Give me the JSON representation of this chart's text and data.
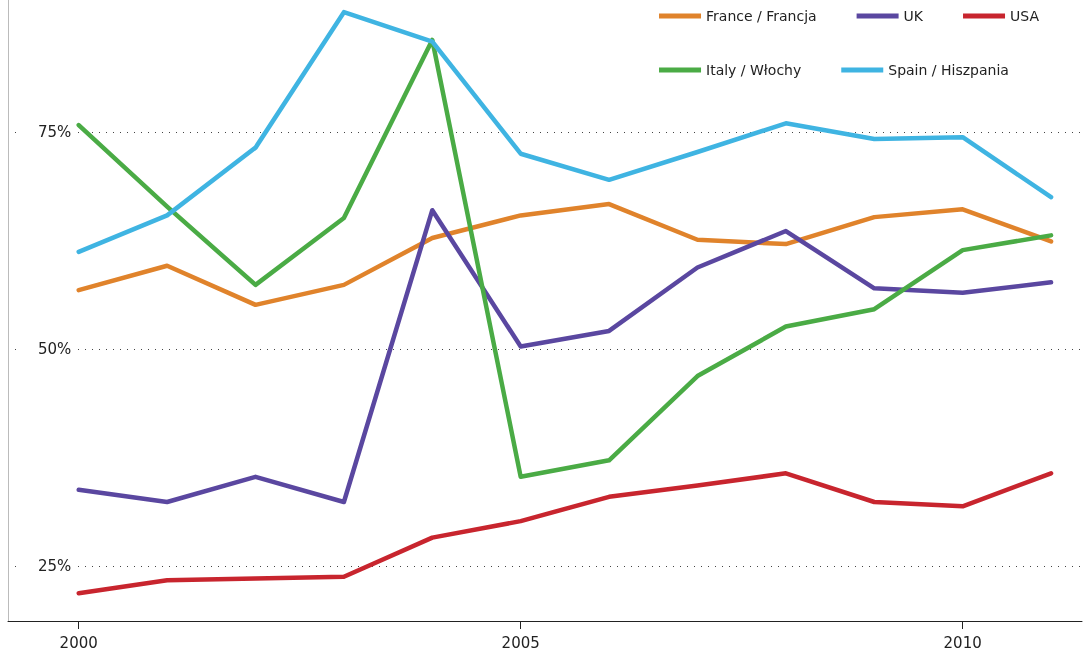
{
  "chart_data": {
    "type": "line",
    "x": [
      2000,
      2001,
      2002,
      2003,
      2004,
      2005,
      2006,
      2007,
      2008,
      2009,
      2010,
      2011
    ],
    "series": [
      {
        "name": "France / Francja",
        "color": "#e0832b",
        "values": [
          56.8,
          59.6,
          55.1,
          57.4,
          62.8,
          65.4,
          66.7,
          62.6,
          62.1,
          65.2,
          66.1,
          62.4
        ]
      },
      {
        "name": "UK",
        "color": "#5a47a0",
        "values": [
          33.8,
          32.4,
          35.3,
          32.4,
          66.0,
          50.3,
          52.1,
          59.4,
          63.6,
          57.0,
          56.5,
          57.7
        ]
      },
      {
        "name": "USA",
        "color": "#c8252e",
        "values": [
          21.9,
          23.4,
          23.6,
          23.8,
          28.3,
          30.2,
          33.0,
          34.3,
          35.7,
          32.4,
          31.9,
          35.7
        ]
      },
      {
        "name": "Italy / Włochy",
        "color": "#4aab45",
        "values": [
          75.8,
          66.4,
          57.4,
          65.1,
          85.6,
          35.3,
          37.2,
          46.9,
          52.6,
          54.6,
          61.4,
          63.1
        ]
      },
      {
        "name": "Spain / Hiszpania",
        "color": "#3fb4e2",
        "values": [
          61.2,
          65.4,
          73.2,
          88.8,
          85.4,
          72.5,
          69.5,
          72.7,
          76.0,
          74.2,
          74.4,
          67.5
        ]
      }
    ],
    "xlim": [
      1999.2,
      2011.35
    ],
    "xticks": [
      2000,
      2005,
      2010
    ],
    "ylim": [
      18.7,
      90.2
    ],
    "yticks": [
      {
        "value": 25,
        "label": "25%"
      },
      {
        "value": 50,
        "label": "50%"
      },
      {
        "value": 75,
        "label": "75%"
      }
    ],
    "grid": "y",
    "legend": "top right",
    "marker": "none",
    "line_style": "solid"
  }
}
